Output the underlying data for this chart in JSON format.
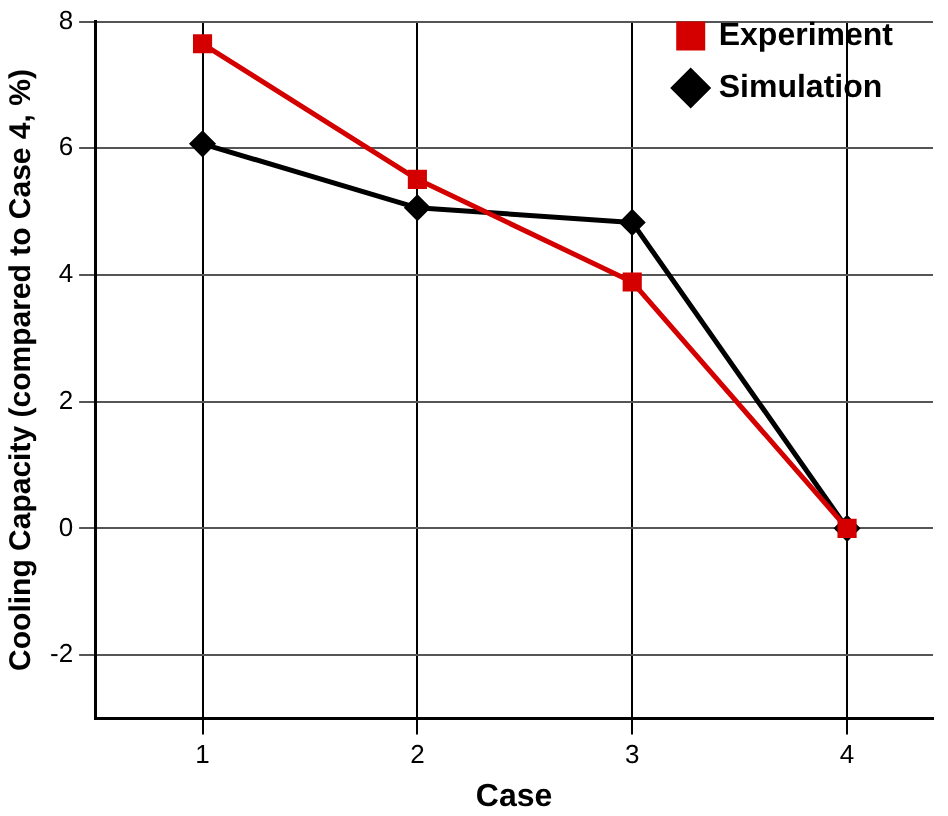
{
  "chart_data": {
    "type": "line",
    "xlabel": "Case",
    "ylabel": "Cooling Capacity (compared to Case 4, %)",
    "x": [
      1,
      2,
      3,
      4
    ],
    "series": [
      {
        "name": "Experiment",
        "color": "#d40000",
        "marker": "square",
        "values": [
          7.65,
          5.51,
          3.89,
          0
        ]
      },
      {
        "name": "Simulation",
        "color": "#000000",
        "marker": "diamond",
        "values": [
          6.07,
          5.06,
          4.83,
          0
        ]
      }
    ],
    "xlim": [
      0.5,
      4.4
    ],
    "xticks": [
      1,
      2,
      3,
      4
    ],
    "ylim": [
      -3,
      8
    ],
    "yticks": [
      -2,
      0,
      2,
      4,
      6,
      8
    ],
    "grid": true,
    "legend": "top right",
    "line_style": "solid"
  }
}
